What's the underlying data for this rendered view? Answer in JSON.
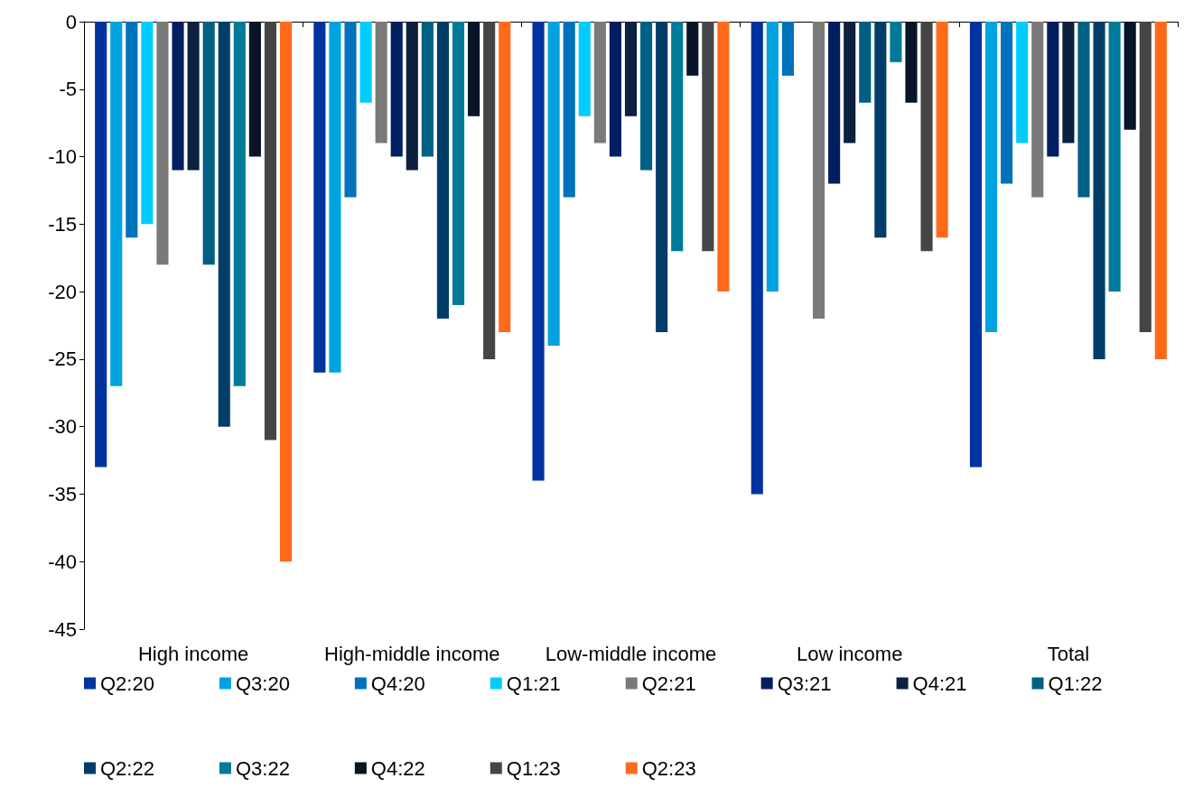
{
  "chart_data": {
    "type": "bar",
    "categories": [
      "High income",
      "High-middle income",
      "Low-middle income",
      "Low income",
      "Total"
    ],
    "ylim": [
      -45,
      0
    ],
    "yticks": [
      -45,
      -40,
      -35,
      -30,
      -25,
      -20,
      -15,
      -10,
      -5,
      0
    ],
    "grid": false,
    "legend": "bottom",
    "series": [
      {
        "name": "Q2:20",
        "color": "#0033a0",
        "values": [
          -33,
          -26,
          -34,
          -35,
          -33
        ]
      },
      {
        "name": "Q3:20",
        "color": "#00a3e0",
        "values": [
          -27,
          -26,
          -24,
          -20,
          -23
        ]
      },
      {
        "name": "Q4:20",
        "color": "#0072bc",
        "values": [
          -16,
          -13,
          -13,
          -4,
          -12
        ]
      },
      {
        "name": "Q1:21",
        "color": "#00ccff",
        "values": [
          -15,
          -6,
          -7,
          null,
          -9
        ]
      },
      {
        "name": "Q2:21",
        "color": "#7a7a7a",
        "values": [
          -18,
          -9,
          -9,
          -22,
          -13
        ]
      },
      {
        "name": "Q3:21",
        "color": "#001e60",
        "values": [
          -11,
          -10,
          -10,
          -12,
          -10
        ]
      },
      {
        "name": "Q4:21",
        "color": "#0c203f",
        "values": [
          -11,
          -11,
          -7,
          -9,
          -9
        ]
      },
      {
        "name": "Q1:22",
        "color": "#005f84",
        "values": [
          -18,
          -10,
          -11,
          -6,
          -13
        ]
      },
      {
        "name": "Q2:22",
        "color": "#003d69",
        "values": [
          -30,
          -22,
          -23,
          -16,
          -25
        ]
      },
      {
        "name": "Q3:22",
        "color": "#007a99",
        "values": [
          -27,
          -21,
          -17,
          -3,
          -20
        ]
      },
      {
        "name": "Q4:22",
        "color": "#081428",
        "values": [
          -10,
          -7,
          -4,
          -6,
          -8
        ]
      },
      {
        "name": "Q1:23",
        "color": "#454545",
        "values": [
          -31,
          -25,
          -17,
          -17,
          -23
        ]
      },
      {
        "name": "Q2:23",
        "color": "#ff6a1a",
        "values": [
          -40,
          -23,
          -20,
          -16,
          -25
        ]
      }
    ]
  }
}
